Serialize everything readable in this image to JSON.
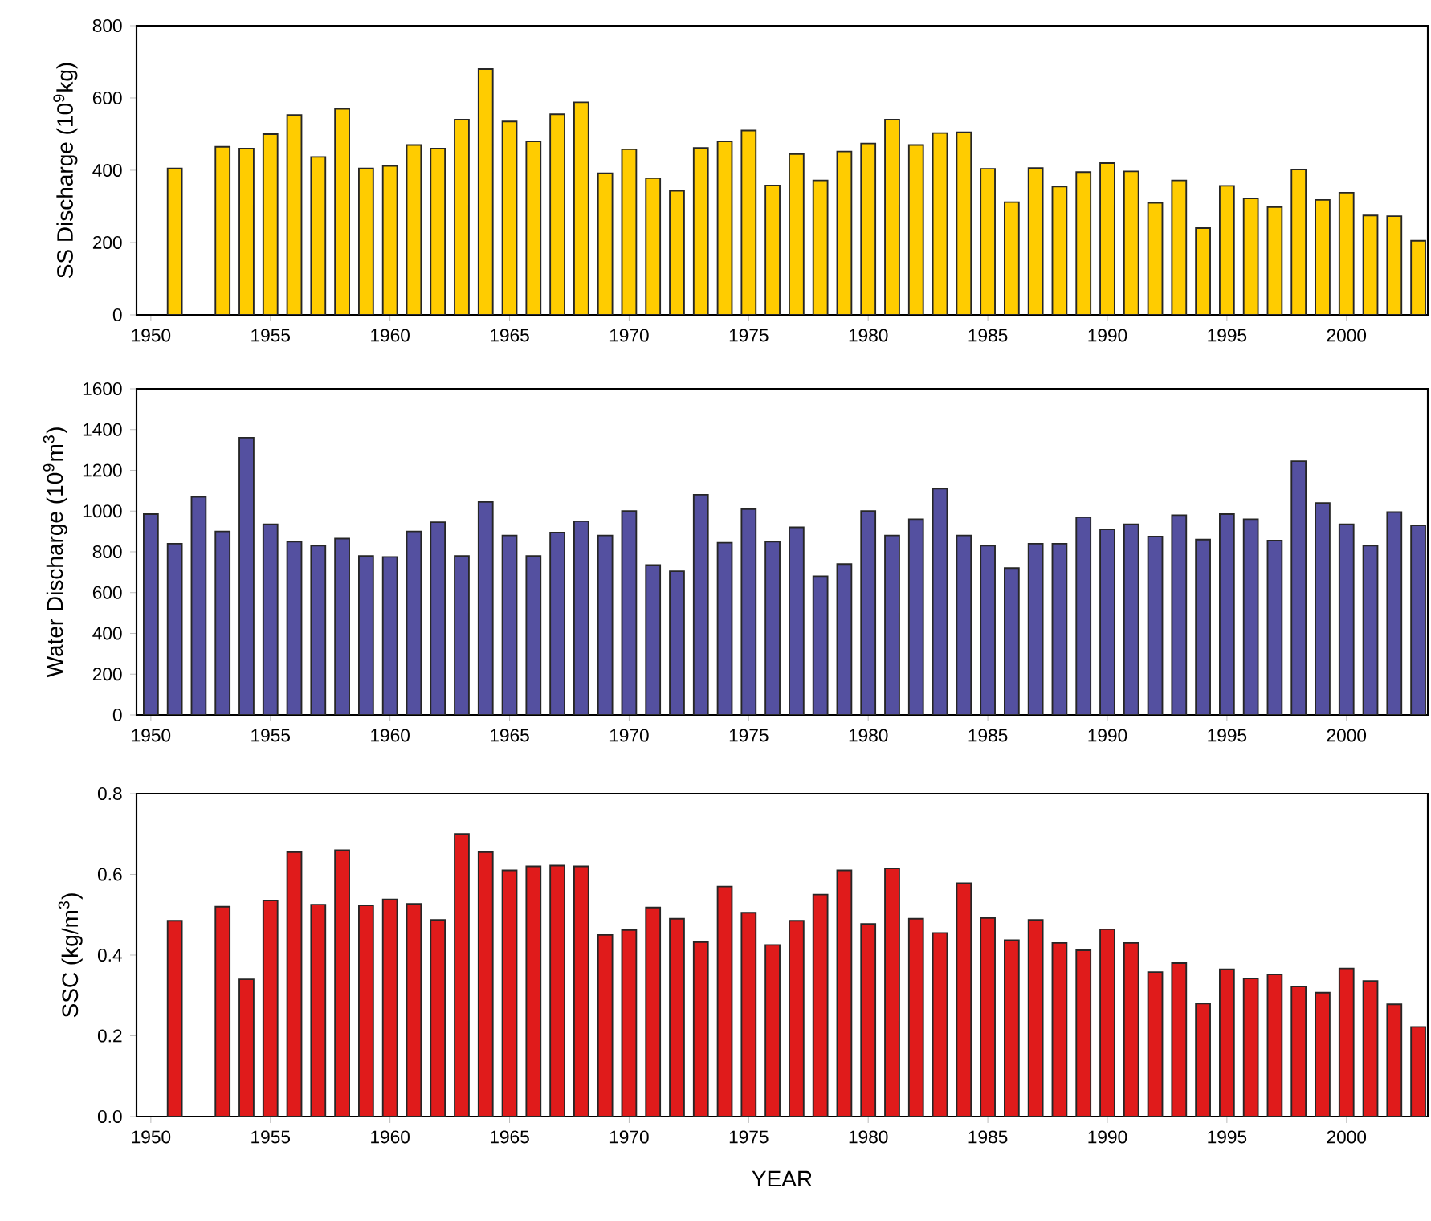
{
  "chart_data": [
    {
      "type": "bar",
      "ylabel": "SS Discharge (10$^{9}$kg)",
      "color": "#ffcc00",
      "xlim": [
        1949.4,
        2003.4
      ],
      "ylim": [
        0,
        800
      ],
      "xticks": [
        1950,
        1955,
        1960,
        1965,
        1970,
        1975,
        1980,
        1985,
        1990,
        1995,
        2000
      ],
      "yticks": [
        0,
        200,
        400,
        600,
        800
      ],
      "x": [
        1951,
        1953,
        1954,
        1955,
        1956,
        1957,
        1958,
        1959,
        1960,
        1961,
        1962,
        1963,
        1964,
        1965,
        1966,
        1967,
        1968,
        1969,
        1970,
        1971,
        1972,
        1973,
        1974,
        1975,
        1976,
        1977,
        1978,
        1979,
        1980,
        1981,
        1982,
        1983,
        1984,
        1985,
        1986,
        1987,
        1988,
        1989,
        1990,
        1991,
        1992,
        1993,
        1994,
        1995,
        1996,
        1997,
        1998,
        1999,
        2000,
        2001,
        2002,
        2003
      ],
      "values": [
        405,
        465,
        460,
        500,
        553,
        437,
        570,
        405,
        412,
        470,
        460,
        540,
        680,
        535,
        480,
        555,
        588,
        392,
        458,
        378,
        343,
        462,
        480,
        510,
        358,
        445,
        372,
        452,
        474,
        540,
        470,
        503,
        505,
        404,
        312,
        406,
        355,
        395,
        420,
        397,
        310,
        372,
        240,
        357,
        322,
        298,
        402,
        318,
        338,
        275,
        273,
        205
      ]
    },
    {
      "type": "bar",
      "ylabel": "Water Discharge (10$^{9}$m$^{3}$)",
      "color": "#5450a0",
      "xlim": [
        1949.4,
        2003.4
      ],
      "ylim": [
        0,
        1600
      ],
      "xticks": [
        1950,
        1955,
        1960,
        1965,
        1970,
        1975,
        1980,
        1985,
        1990,
        1995,
        2000
      ],
      "yticks": [
        0,
        200,
        400,
        600,
        800,
        1000,
        1200,
        1400,
        1600
      ],
      "x": [
        1950,
        1951,
        1952,
        1953,
        1954,
        1955,
        1956,
        1957,
        1958,
        1959,
        1960,
        1961,
        1962,
        1963,
        1964,
        1965,
        1966,
        1967,
        1968,
        1969,
        1970,
        1971,
        1972,
        1973,
        1974,
        1975,
        1976,
        1977,
        1978,
        1979,
        1980,
        1981,
        1982,
        1983,
        1984,
        1985,
        1986,
        1987,
        1988,
        1989,
        1990,
        1991,
        1992,
        1993,
        1994,
        1995,
        1996,
        1997,
        1998,
        1999,
        2000,
        2001,
        2002,
        2003
      ],
      "values": [
        985,
        840,
        1070,
        900,
        1360,
        935,
        850,
        830,
        865,
        780,
        775,
        900,
        945,
        780,
        1045,
        880,
        780,
        895,
        950,
        880,
        1000,
        735,
        705,
        1080,
        845,
        1010,
        850,
        920,
        680,
        740,
        1000,
        880,
        960,
        1110,
        880,
        830,
        720,
        840,
        840,
        970,
        910,
        935,
        875,
        980,
        860,
        985,
        960,
        855,
        1245,
        1040,
        935,
        830,
        995,
        930
      ]
    },
    {
      "type": "bar",
      "xlabel": "YEAR",
      "ylabel": "SSC (kg/m$^{3}$)",
      "color": "#e01b1b",
      "xlim": [
        1949.4,
        2003.4
      ],
      "ylim": [
        0,
        0.8
      ],
      "xticks": [
        1950,
        1955,
        1960,
        1965,
        1970,
        1975,
        1980,
        1985,
        1990,
        1995,
        2000
      ],
      "yticks": [
        {
          "value": 0,
          "label": "0.0"
        },
        0.2,
        0.4,
        0.6,
        0.8
      ],
      "x": [
        1951,
        1953,
        1954,
        1955,
        1956,
        1957,
        1958,
        1959,
        1960,
        1961,
        1962,
        1963,
        1964,
        1965,
        1966,
        1967,
        1968,
        1969,
        1970,
        1971,
        1972,
        1973,
        1974,
        1975,
        1976,
        1977,
        1978,
        1979,
        1980,
        1981,
        1982,
        1983,
        1984,
        1985,
        1986,
        1987,
        1988,
        1989,
        1990,
        1991,
        1992,
        1993,
        1994,
        1995,
        1996,
        1997,
        1998,
        1999,
        2000,
        2001,
        2002,
        2003
      ],
      "values": [
        0.485,
        0.52,
        0.34,
        0.535,
        0.655,
        0.525,
        0.66,
        0.523,
        0.538,
        0.527,
        0.487,
        0.7,
        0.655,
        0.61,
        0.62,
        0.622,
        0.62,
        0.45,
        0.462,
        0.518,
        0.49,
        0.432,
        0.57,
        0.505,
        0.425,
        0.485,
        0.55,
        0.61,
        0.477,
        0.615,
        0.49,
        0.455,
        0.578,
        0.492,
        0.437,
        0.487,
        0.43,
        0.412,
        0.464,
        0.43,
        0.358,
        0.38,
        0.28,
        0.365,
        0.342,
        0.352,
        0.322,
        0.307,
        0.367,
        0.336,
        0.278,
        0.222
      ]
    }
  ]
}
